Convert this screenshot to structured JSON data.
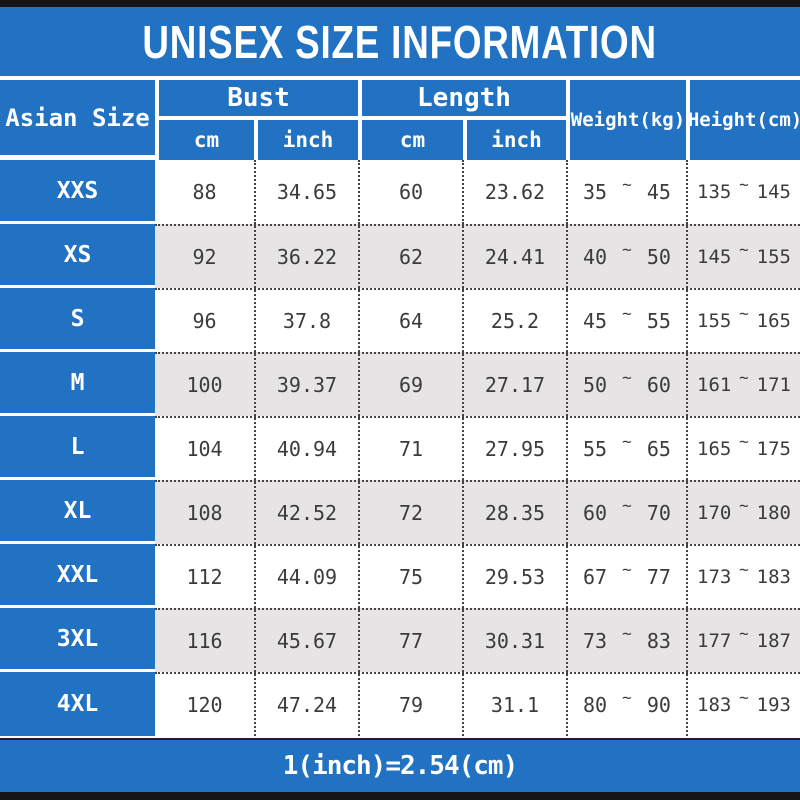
{
  "title": "UNISEX SIZE INFORMATION",
  "footnote": "1(inch)=2.54(cm)",
  "colors": {
    "accent_blue": "#2272c3",
    "alt_row_gray": "#e6e4e5",
    "frame_bar_black": "#141414",
    "value_text": "#3b3b3b"
  },
  "table": {
    "tilde": "~",
    "size_column_header": "Asian Size",
    "groups": [
      {
        "label": "Bust",
        "sub": [
          "cm",
          "inch"
        ]
      },
      {
        "label": "Length",
        "sub": [
          "cm",
          "inch"
        ]
      }
    ],
    "single_headers": {
      "weight": "Weight(kg)",
      "height": "Height(cm)"
    },
    "rows": [
      {
        "size": "XXS",
        "bust_cm": "88",
        "bust_inch": "34.65",
        "length_cm": "60",
        "length_inch": "23.62",
        "weight": [
          "35",
          "45"
        ],
        "height": [
          "135",
          "145"
        ]
      },
      {
        "size": "XS",
        "bust_cm": "92",
        "bust_inch": "36.22",
        "length_cm": "62",
        "length_inch": "24.41",
        "weight": [
          "40",
          "50"
        ],
        "height": [
          "145",
          "155"
        ]
      },
      {
        "size": "S",
        "bust_cm": "96",
        "bust_inch": "37.8",
        "length_cm": "64",
        "length_inch": "25.2",
        "weight": [
          "45",
          "55"
        ],
        "height": [
          "155",
          "165"
        ]
      },
      {
        "size": "M",
        "bust_cm": "100",
        "bust_inch": "39.37",
        "length_cm": "69",
        "length_inch": "27.17",
        "weight": [
          "50",
          "60"
        ],
        "height": [
          "161",
          "171"
        ]
      },
      {
        "size": "L",
        "bust_cm": "104",
        "bust_inch": "40.94",
        "length_cm": "71",
        "length_inch": "27.95",
        "weight": [
          "55",
          "65"
        ],
        "height": [
          "165",
          "175"
        ]
      },
      {
        "size": "XL",
        "bust_cm": "108",
        "bust_inch": "42.52",
        "length_cm": "72",
        "length_inch": "28.35",
        "weight": [
          "60",
          "70"
        ],
        "height": [
          "170",
          "180"
        ]
      },
      {
        "size": "XXL",
        "bust_cm": "112",
        "bust_inch": "44.09",
        "length_cm": "75",
        "length_inch": "29.53",
        "weight": [
          "67",
          "77"
        ],
        "height": [
          "173",
          "183"
        ]
      },
      {
        "size": "3XL",
        "bust_cm": "116",
        "bust_inch": "45.67",
        "length_cm": "77",
        "length_inch": "30.31",
        "weight": [
          "73",
          "83"
        ],
        "height": [
          "177",
          "187"
        ]
      },
      {
        "size": "4XL",
        "bust_cm": "120",
        "bust_inch": "47.24",
        "length_cm": "79",
        "length_inch": "31.1",
        "weight": [
          "80",
          "90"
        ],
        "height": [
          "183",
          "193"
        ]
      }
    ]
  },
  "chart_data": {
    "type": "table",
    "title": "UNISEX SIZE INFORMATION",
    "columns": [
      "Asian Size",
      "Bust cm",
      "Bust inch",
      "Length cm",
      "Length inch",
      "Weight(kg)",
      "Height(cm)"
    ],
    "rows": [
      [
        "XXS",
        "88",
        "34.65",
        "60",
        "23.62",
        "35~45",
        "135~145"
      ],
      [
        "XS",
        "92",
        "36.22",
        "62",
        "24.41",
        "40~50",
        "145~155"
      ],
      [
        "S",
        "96",
        "37.8",
        "64",
        "25.2",
        "45~55",
        "155~165"
      ],
      [
        "M",
        "100",
        "39.37",
        "69",
        "27.17",
        "50~60",
        "161~171"
      ],
      [
        "L",
        "104",
        "40.94",
        "71",
        "27.95",
        "55~65",
        "165~175"
      ],
      [
        "XL",
        "108",
        "42.52",
        "72",
        "28.35",
        "60~70",
        "170~180"
      ],
      [
        "XXL",
        "112",
        "44.09",
        "75",
        "29.53",
        "67~77",
        "173~183"
      ],
      [
        "3XL",
        "116",
        "45.67",
        "77",
        "30.31",
        "73~83",
        "177~187"
      ],
      [
        "4XL",
        "120",
        "47.24",
        "79",
        "31.1",
        "80~90",
        "183~193"
      ]
    ],
    "footnote": "1(inch)=2.54(cm)"
  }
}
